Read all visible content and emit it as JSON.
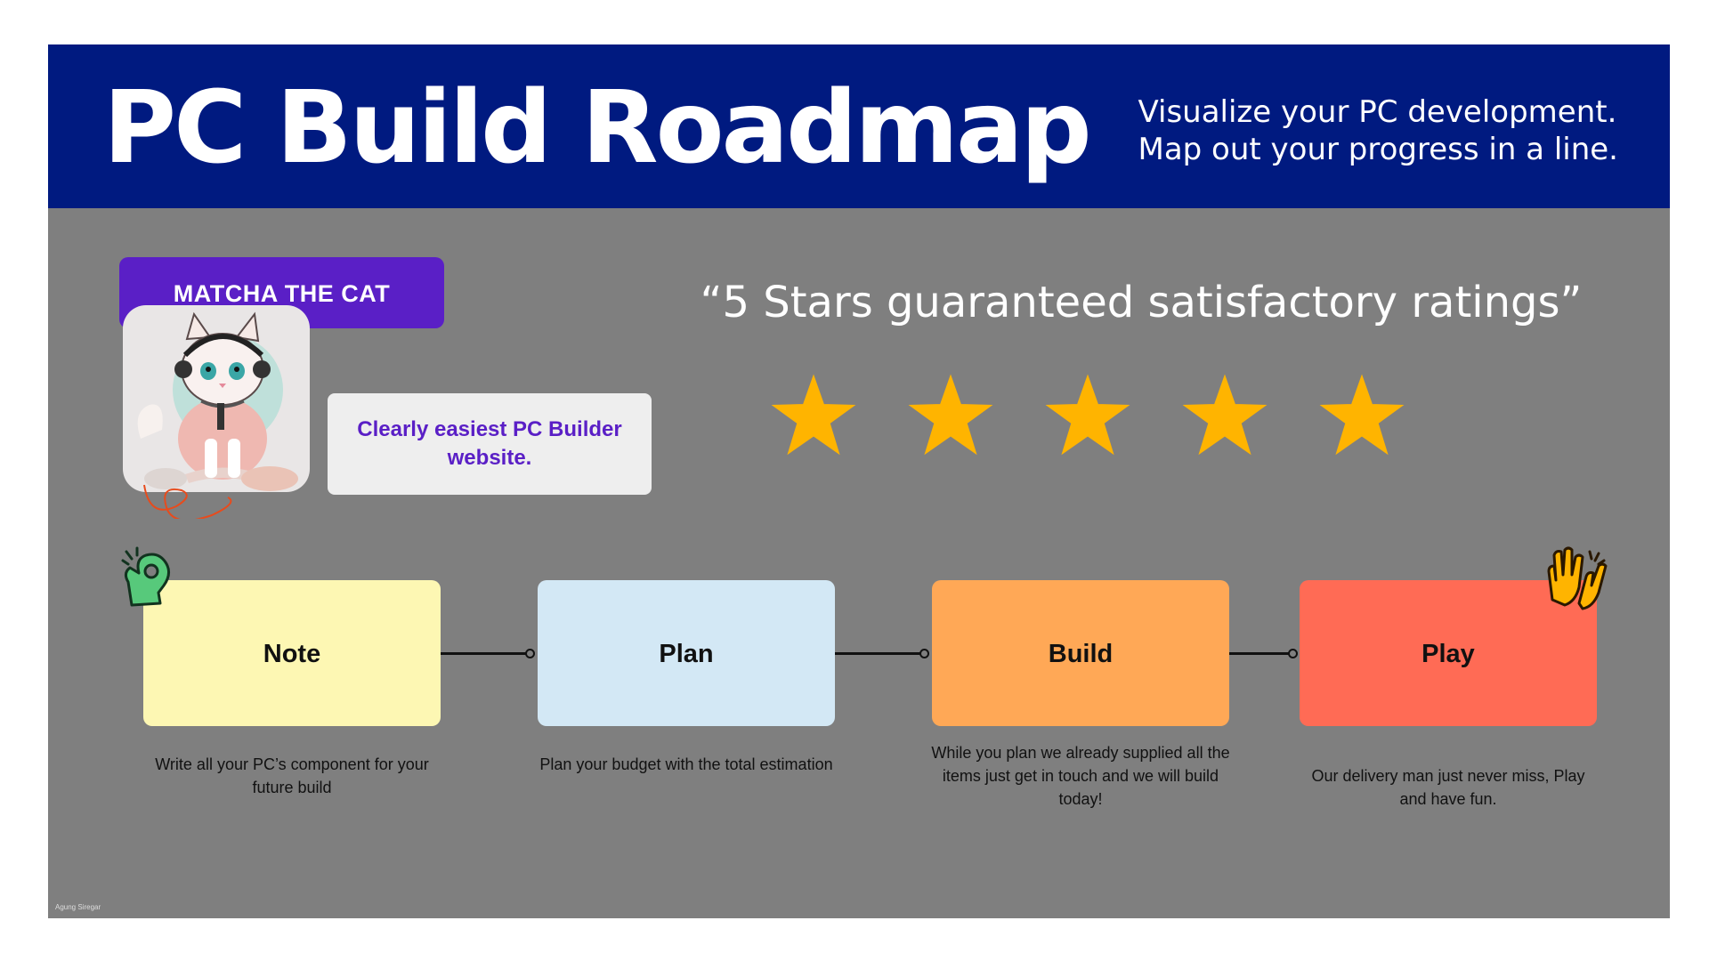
{
  "header": {
    "title": "PC Build Roadmap",
    "subtitle_line1": "Visualize your PC development.",
    "subtitle_line2": "Map out your progress in a line."
  },
  "testimonial": {
    "name": "MATCHA THE CAT",
    "text": "Clearly easiest PC Builder website.",
    "quote": "“5 Stars guaranteed satisfactory ratings”",
    "rating": 5,
    "max_rating": 5
  },
  "steps": [
    {
      "title": "Note",
      "description": "Write all your PC’s component for your future build",
      "color": "#fdf7b3"
    },
    {
      "title": "Plan",
      "description": "Plan your budget with the total estimation",
      "color": "#d3e8f5"
    },
    {
      "title": "Build",
      "description": "While you plan we already supplied all the items just get in touch and we will build today!",
      "color": "#ffa856"
    },
    {
      "title": "Play",
      "description": "Our delivery man just never miss, Play and have fun.",
      "color": "#ff6b55"
    }
  ],
  "credit": "Agung Siregar",
  "colors": {
    "header_bg": "#001a80",
    "panel_bg": "#7f7f7f",
    "accent_purple": "#5a1fc6",
    "star": "#ffb400"
  },
  "icons": [
    "ok-hand-icon",
    "high-five-icon",
    "star-icon",
    "cat-avatar"
  ]
}
